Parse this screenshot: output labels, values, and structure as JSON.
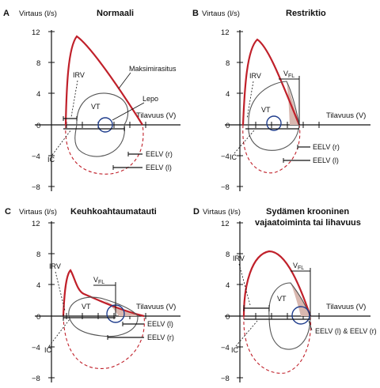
{
  "colors": {
    "maximal_loop": "#c0202a",
    "tidal_loop": "#1f3d8c",
    "resting_loop": "#555555",
    "flow_limited_area": "#d9b8b0",
    "axis": "#111111"
  },
  "axis": {
    "y_label": "Virtaus (l/s)",
    "x_label": "Tilavuus (V)",
    "y_ticks": [
      "12",
      "8",
      "4",
      "0",
      "−4",
      "−8"
    ]
  },
  "panels": [
    {
      "letter": "A",
      "title": "Normaali",
      "title_line2": "",
      "labels": {
        "irv": "IRV",
        "vt": "VT",
        "ic": "IC",
        "max_exercise": "Maksimirasitus",
        "rest": "Lepo",
        "eelv_r": "EELV (r)",
        "eelv_l": "EELV (l)"
      }
    },
    {
      "letter": "B",
      "title": "Restriktio",
      "title_line2": "",
      "labels": {
        "irv": "IRV",
        "vt": "VT",
        "ic": "IC",
        "vfl": "V",
        "vfl_sub": "FL",
        "eelv_r": "EELV (r)",
        "eelv_l": "EELV (l)"
      }
    },
    {
      "letter": "C",
      "title": "Keuhkoahtaumatauti",
      "title_line2": "",
      "labels": {
        "irv": "IRV",
        "vt": "VT",
        "ic": "IC",
        "vfl": "V",
        "vfl_sub": "FL",
        "eelv_l": "EELV (l)",
        "eelv_r": "EELV (r)"
      }
    },
    {
      "letter": "D",
      "title": "Sydämen krooninen",
      "title_line2": "vajaatoiminta tai lihavuus",
      "labels": {
        "irv": "IRV",
        "vt": "VT",
        "ic": "IC",
        "vfl": "V",
        "vfl_sub": "FL",
        "eelv_both": "EELV (l) & EELV (r)"
      }
    }
  ]
}
